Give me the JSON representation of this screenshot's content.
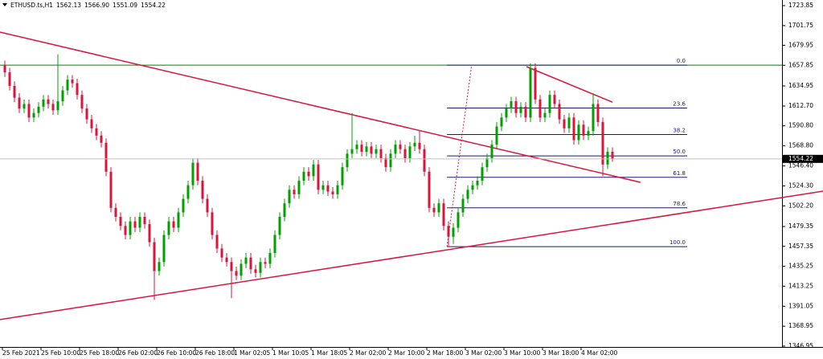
{
  "chart_data": {
    "type": "candlestick",
    "symbol": "ETHUSD.ts,H1",
    "header_ohlc": [
      {
        "value": 1562.13,
        "label": "1562.13"
      },
      {
        "value": 1566.9,
        "label": "1566.90"
      },
      {
        "value": 1551.09,
        "label": "1551.09"
      },
      {
        "value": 1554.22,
        "label": "1554.22"
      }
    ],
    "categories": [
      "25 Feb 2021",
      null,
      null,
      null,
      null,
      null,
      null,
      null,
      "25 Feb 10:00",
      null,
      null,
      null,
      null,
      null,
      null,
      null,
      "25 Feb 18:00",
      null,
      null,
      null,
      null,
      null,
      null,
      null,
      "26 Feb 02:00",
      null,
      null,
      null,
      null,
      null,
      null,
      null,
      "26 Feb 10:00",
      null,
      null,
      null,
      null,
      null,
      null,
      null,
      "26 Feb 18:00",
      null,
      null,
      null,
      null,
      null,
      null,
      null,
      "1 Mar 02:05",
      null,
      null,
      null,
      null,
      null,
      null,
      null,
      "1 Mar 10:05",
      null,
      null,
      null,
      null,
      null,
      null,
      null,
      "1 Mar 18:05",
      null,
      null,
      null,
      null,
      null,
      null,
      null,
      "2 Mar 02:00",
      null,
      null,
      null,
      null,
      null,
      null,
      null,
      "2 Mar 10:00",
      null,
      null,
      null,
      null,
      null,
      null,
      null,
      "2 Mar 18:00",
      null,
      null,
      null,
      null,
      null,
      null,
      null,
      "3 Mar 02:00",
      null,
      null,
      null,
      null,
      null,
      null,
      null,
      "3 Mar 10:00",
      null,
      null,
      null,
      null,
      null,
      null,
      null,
      "3 Mar 18:00",
      null,
      null,
      null,
      null,
      null,
      null,
      null,
      "4 Mar 02:00",
      null,
      null,
      null,
      null,
      null,
      null
    ],
    "ohlc": [
      [
        1658,
        1663,
        1645,
        1650
      ],
      [
        1650,
        1655,
        1630,
        1635
      ],
      [
        1635,
        1640,
        1617,
        1622
      ],
      [
        1622,
        1627,
        1605,
        1610
      ],
      [
        1610,
        1620,
        1605,
        1615
      ],
      [
        1615,
        1620,
        1595,
        1600
      ],
      [
        1600,
        1610,
        1595,
        1605
      ],
      [
        1605,
        1617,
        1600,
        1612
      ],
      [
        1612,
        1625,
        1607,
        1620
      ],
      [
        1620,
        1625,
        1610,
        1615
      ],
      [
        1615,
        1620,
        1603,
        1608
      ],
      [
        1608,
        1670,
        1603,
        1618
      ],
      [
        1618,
        1635,
        1613,
        1630
      ],
      [
        1630,
        1647,
        1625,
        1642
      ],
      [
        1642,
        1647,
        1633,
        1638
      ],
      [
        1638,
        1643,
        1620,
        1625
      ],
      [
        1625,
        1630,
        1605,
        1610
      ],
      [
        1610,
        1615,
        1593,
        1598
      ],
      [
        1598,
        1603,
        1583,
        1588
      ],
      [
        1588,
        1593,
        1575,
        1580
      ],
      [
        1580,
        1585,
        1567,
        1572
      ],
      [
        1572,
        1577,
        1535,
        1540
      ],
      [
        1540,
        1545,
        1495,
        1500
      ],
      [
        1500,
        1505,
        1485,
        1490
      ],
      [
        1490,
        1495,
        1475,
        1480
      ],
      [
        1480,
        1485,
        1465,
        1470
      ],
      [
        1470,
        1490,
        1465,
        1485
      ],
      [
        1485,
        1490,
        1473,
        1478
      ],
      [
        1478,
        1495,
        1473,
        1490
      ],
      [
        1490,
        1495,
        1477,
        1482
      ],
      [
        1482,
        1487,
        1457,
        1462
      ],
      [
        1462,
        1467,
        1398,
        1430
      ],
      [
        1430,
        1445,
        1425,
        1440
      ],
      [
        1440,
        1475,
        1435,
        1470
      ],
      [
        1470,
        1490,
        1465,
        1485
      ],
      [
        1485,
        1490,
        1473,
        1478
      ],
      [
        1478,
        1500,
        1473,
        1495
      ],
      [
        1495,
        1515,
        1490,
        1510
      ],
      [
        1510,
        1530,
        1505,
        1525
      ],
      [
        1525,
        1555,
        1520,
        1550
      ],
      [
        1550,
        1555,
        1525,
        1530
      ],
      [
        1530,
        1535,
        1505,
        1510
      ],
      [
        1510,
        1515,
        1490,
        1495
      ],
      [
        1495,
        1500,
        1465,
        1470
      ],
      [
        1470,
        1475,
        1450,
        1455
      ],
      [
        1455,
        1460,
        1440,
        1445
      ],
      [
        1445,
        1450,
        1435,
        1440
      ],
      [
        1440,
        1445,
        1400,
        1430
      ],
      [
        1430,
        1435,
        1420,
        1425
      ],
      [
        1425,
        1443,
        1420,
        1438
      ],
      [
        1438,
        1450,
        1433,
        1445
      ],
      [
        1445,
        1450,
        1427,
        1432
      ],
      [
        1432,
        1437,
        1423,
        1428
      ],
      [
        1428,
        1445,
        1423,
        1440
      ],
      [
        1440,
        1445,
        1433,
        1438
      ],
      [
        1438,
        1455,
        1433,
        1450
      ],
      [
        1450,
        1475,
        1445,
        1470
      ],
      [
        1470,
        1495,
        1465,
        1490
      ],
      [
        1490,
        1510,
        1485,
        1505
      ],
      [
        1505,
        1525,
        1500,
        1520
      ],
      [
        1520,
        1525,
        1510,
        1515
      ],
      [
        1515,
        1535,
        1510,
        1530
      ],
      [
        1530,
        1545,
        1525,
        1540
      ],
      [
        1540,
        1545,
        1530,
        1535
      ],
      [
        1535,
        1553,
        1530,
        1548
      ],
      [
        1548,
        1553,
        1515,
        1520
      ],
      [
        1520,
        1530,
        1515,
        1525
      ],
      [
        1525,
        1530,
        1513,
        1518
      ],
      [
        1518,
        1523,
        1510,
        1515
      ],
      [
        1515,
        1530,
        1510,
        1525
      ],
      [
        1525,
        1550,
        1520,
        1545
      ],
      [
        1545,
        1565,
        1540,
        1560
      ],
      [
        1560,
        1605,
        1555,
        1565
      ],
      [
        1565,
        1575,
        1560,
        1570
      ],
      [
        1570,
        1575,
        1557,
        1562
      ],
      [
        1562,
        1573,
        1557,
        1568
      ],
      [
        1568,
        1573,
        1555,
        1560
      ],
      [
        1560,
        1570,
        1555,
        1565
      ],
      [
        1565,
        1570,
        1550,
        1555
      ],
      [
        1555,
        1560,
        1540,
        1545
      ],
      [
        1545,
        1565,
        1540,
        1560
      ],
      [
        1560,
        1575,
        1555,
        1570
      ],
      [
        1570,
        1575,
        1560,
        1565
      ],
      [
        1565,
        1570,
        1550,
        1555
      ],
      [
        1555,
        1573,
        1550,
        1568
      ],
      [
        1568,
        1580,
        1563,
        1572
      ],
      [
        1572,
        1585,
        1560,
        1565
      ],
      [
        1565,
        1570,
        1535,
        1540
      ],
      [
        1540,
        1545,
        1495,
        1500
      ],
      [
        1500,
        1505,
        1490,
        1495
      ],
      [
        1495,
        1510,
        1490,
        1505
      ],
      [
        1505,
        1510,
        1475,
        1480
      ],
      [
        1480,
        1485,
        1457,
        1468
      ],
      [
        1468,
        1483,
        1460,
        1478
      ],
      [
        1478,
        1500,
        1473,
        1495
      ],
      [
        1495,
        1515,
        1490,
        1510
      ],
      [
        1510,
        1525,
        1505,
        1520
      ],
      [
        1520,
        1530,
        1515,
        1525
      ],
      [
        1525,
        1535,
        1520,
        1530
      ],
      [
        1530,
        1550,
        1525,
        1545
      ],
      [
        1545,
        1560,
        1540,
        1555
      ],
      [
        1555,
        1575,
        1550,
        1570
      ],
      [
        1570,
        1595,
        1565,
        1590
      ],
      [
        1590,
        1605,
        1585,
        1600
      ],
      [
        1600,
        1615,
        1595,
        1610
      ],
      [
        1610,
        1623,
        1605,
        1618
      ],
      [
        1618,
        1623,
        1600,
        1605
      ],
      [
        1605,
        1617,
        1600,
        1612
      ],
      [
        1612,
        1617,
        1595,
        1600
      ],
      [
        1600,
        1660,
        1595,
        1655
      ],
      [
        1655,
        1660,
        1615,
        1620
      ],
      [
        1620,
        1625,
        1595,
        1600
      ],
      [
        1600,
        1610,
        1595,
        1605
      ],
      [
        1605,
        1630,
        1600,
        1625
      ],
      [
        1625,
        1630,
        1610,
        1615
      ],
      [
        1615,
        1620,
        1593,
        1598
      ],
      [
        1598,
        1603,
        1583,
        1588
      ],
      [
        1588,
        1605,
        1583,
        1600
      ],
      [
        1600,
        1605,
        1570,
        1575
      ],
      [
        1575,
        1597,
        1570,
        1592
      ],
      [
        1592,
        1597,
        1575,
        1580
      ],
      [
        1580,
        1590,
        1575,
        1585
      ],
      [
        1585,
        1627,
        1580,
        1615
      ],
      [
        1615,
        1620,
        1590,
        1595
      ],
      [
        1595,
        1600,
        1535,
        1548
      ],
      [
        1548,
        1567,
        1543,
        1562.13
      ],
      [
        1562.13,
        1566.9,
        1551.09,
        1554.22
      ]
    ],
    "up_color": "#00a000",
    "down_color": "#dc143c",
    "ylim": [
      1346,
      1730.1
    ],
    "yticks": [
      1723.85,
      1701.75,
      1679.95,
      1657.85,
      1634.95,
      {
        "value": 1612.7,
        "label": "1612.70"
      },
      {
        "value": 1590.8,
        "label": "1590.80"
      },
      {
        "value": 1568.8,
        "label": "1568.80"
      },
      {
        "value": 1546.4,
        "label": "1546.40"
      },
      {
        "value": 1524.3,
        "label": "1524.30"
      },
      {
        "value": 1502.2,
        "label": "1502.20"
      },
      1479.35,
      1457.35,
      1435.25,
      1413.25,
      1391.05,
      1368.95,
      1346.95
    ],
    "hline": {
      "value": 1658,
      "color": "#008000"
    },
    "fib": {
      "high": 1658,
      "low": 1457,
      "start": 91.7,
      "end": 141.5,
      "color": "#191970",
      "levels": [
        {
          "value": 0,
          "label": "0.0"
        },
        23.6,
        38.2,
        {
          "value": 50,
          "label": "50.0"
        },
        61.8,
        78.6,
        {
          "value": 100,
          "label": "100.0"
        }
      ]
    },
    "trendlines": [
      {
        "x": [
          -1,
          131.8
        ],
        "y": [
          1694.5,
          1528.3
        ],
        "color": "#dc143c"
      },
      {
        "x": [
          -1,
          169.7
        ],
        "y": [
          1376.3,
          1518.5
        ],
        "color": "#dc143c"
      },
      {
        "x": [
          108.2,
          126
        ],
        "y": [
          1656.3,
          1617
        ],
        "color": "#dc143c"
      },
      {
        "x": [
          91.7,
          96.8
        ],
        "y": [
          1457,
          1658
        ],
        "color": "#dc143c",
        "dashed": true
      }
    ]
  }
}
